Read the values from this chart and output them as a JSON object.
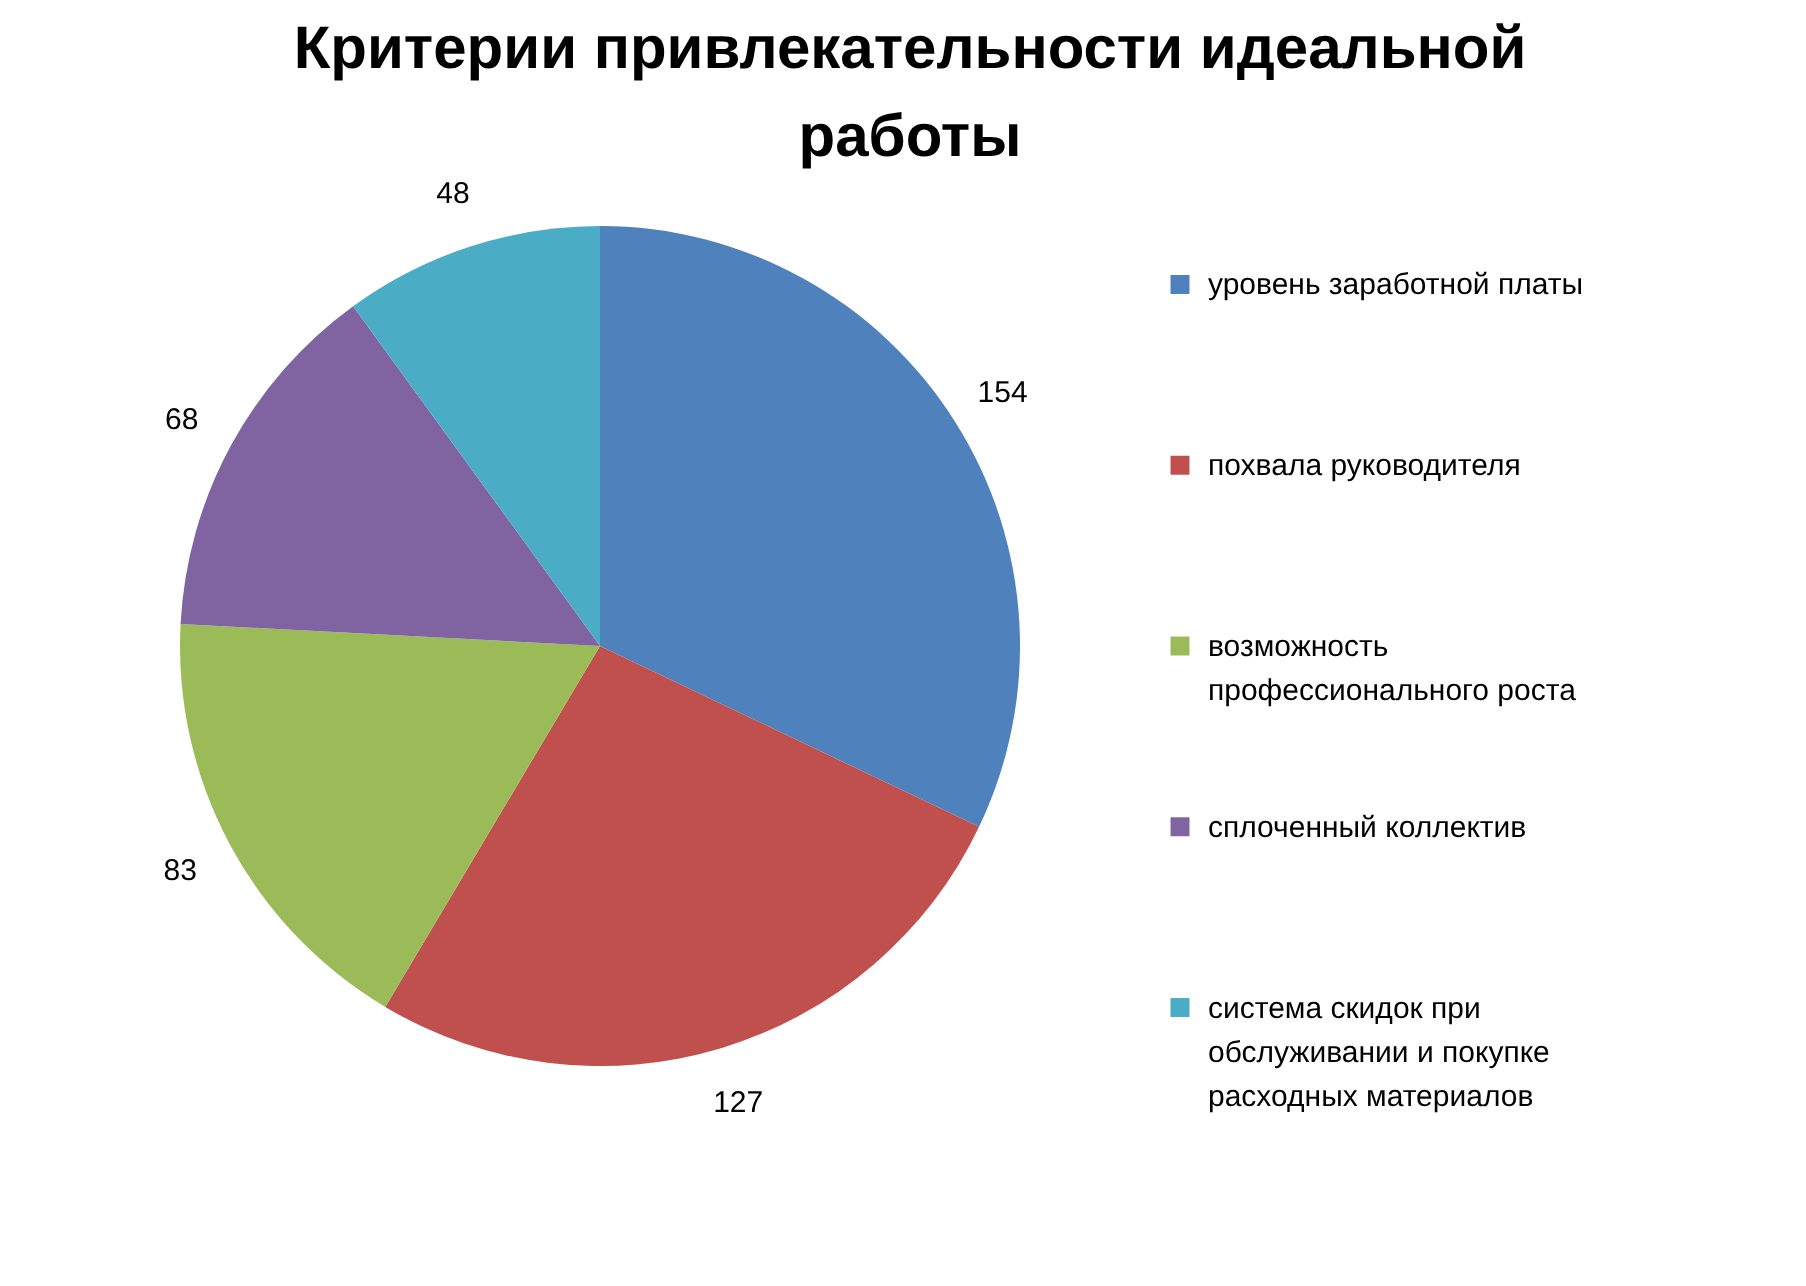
{
  "chart_data": {
    "type": "pie",
    "title": "Критерии привлекательности идеальной работы",
    "categories": [
      "уровень заработной платы",
      "похвала руководителя",
      "возможность профессионального роста",
      "сплоченный коллектив",
      "система скидок при обслуживании и покупке расходных материалов"
    ],
    "values": [
      154,
      127,
      83,
      68,
      48
    ],
    "colors": [
      "#4f81bd",
      "#c0504d",
      "#9bbb59",
      "#8064a2",
      "#4bacc6"
    ],
    "data_labels": true,
    "legend": "right"
  }
}
